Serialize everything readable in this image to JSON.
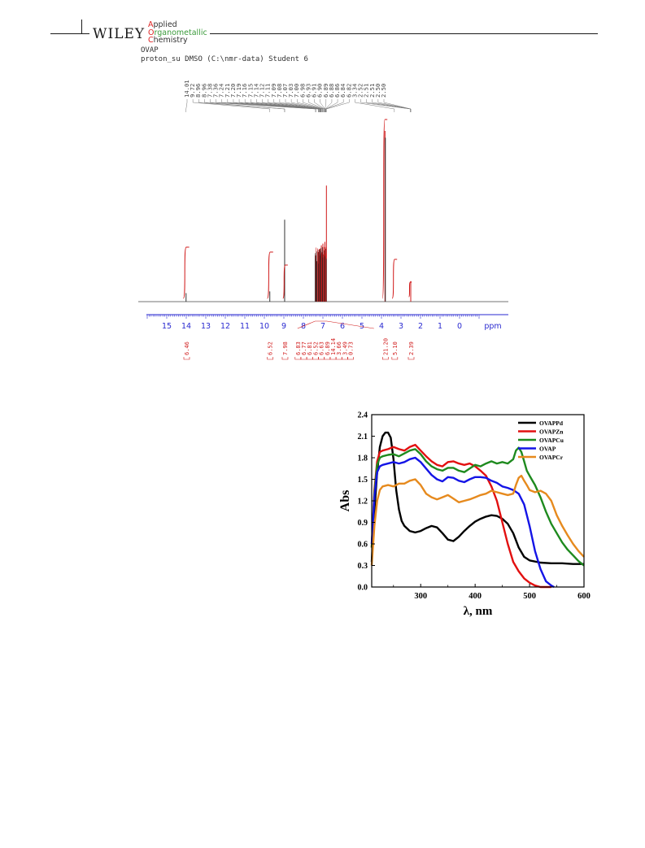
{
  "header": {
    "publisher": "WILEY",
    "journal_line1": "Applied",
    "journal_line2": "Organometallic",
    "journal_line3": "Chemistry"
  },
  "nmr": {
    "sample": "OVAP",
    "experiment": "proton_su DMSO (C:\\nmr-data) Student 6",
    "peak_labels": [
      "14.01",
      "9.72",
      "8.96",
      "8.96",
      "7.38",
      "7.36",
      "7.24",
      "7.21",
      "7.20",
      "7.19",
      "7.16",
      "7.15",
      "7.14",
      "7.12",
      "7.11",
      "7.09",
      "7.08",
      "7.07",
      "7.03",
      "7.00",
      "6.98",
      "6.93",
      "6.91",
      "6.90",
      "6.89",
      "6.88",
      "6.86",
      "6.84",
      "6.82",
      "3.34",
      "2.52",
      "2.51",
      "2.51",
      "2.50",
      "2.50"
    ],
    "ticks": [
      "15",
      "14",
      "13",
      "12",
      "11",
      "10",
      "9",
      "8",
      "7",
      "6",
      "5",
      "4",
      "3",
      "2",
      "1",
      "0"
    ],
    "unit": "ppm",
    "integrals": [
      {
        "ppm": 14.0,
        "label": "6.46"
      },
      {
        "ppm": 9.7,
        "label": "6.52"
      },
      {
        "ppm": 8.95,
        "label": "7.98"
      },
      {
        "ppm": 7.3,
        "label": "6.83"
      },
      {
        "ppm": 7.18,
        "label": "6.77"
      },
      {
        "ppm": 7.08,
        "label": "6.81"
      },
      {
        "ppm": 7.0,
        "label": "6.52"
      },
      {
        "ppm": 6.93,
        "label": "6.63"
      },
      {
        "ppm": 6.88,
        "label": "6.89"
      },
      {
        "ppm": 6.85,
        "label": "14.14"
      },
      {
        "ppm": 6.8,
        "label": "3.66"
      },
      {
        "ppm": 6.76,
        "label": "3.49"
      },
      {
        "ppm": 6.7,
        "label": "0.73"
      },
      {
        "ppm": 3.82,
        "label": "21.20"
      },
      {
        "ppm": 3.34,
        "label": "5.10"
      },
      {
        "ppm": 2.5,
        "label": "2.39"
      }
    ],
    "peaks": [
      {
        "ppm": 14.01,
        "h": 0.05,
        "color": "#333333"
      },
      {
        "ppm": 9.72,
        "h": 0.06,
        "color": "#333333"
      },
      {
        "ppm": 8.96,
        "h": 0.48,
        "color": "#333333"
      },
      {
        "ppm": 7.38,
        "h": 0.27,
        "color": "#d01818"
      },
      {
        "ppm": 7.36,
        "h": 0.27,
        "color": "#333333"
      },
      {
        "ppm": 7.24,
        "h": 0.29,
        "color": "#d01818"
      },
      {
        "ppm": 7.21,
        "h": 0.29,
        "color": "#333333"
      },
      {
        "ppm": 7.19,
        "h": 0.3,
        "color": "#d01818"
      },
      {
        "ppm": 7.16,
        "h": 0.27,
        "color": "#333333"
      },
      {
        "ppm": 7.14,
        "h": 0.31,
        "color": "#d01818"
      },
      {
        "ppm": 7.11,
        "h": 0.28,
        "color": "#333333"
      },
      {
        "ppm": 7.08,
        "h": 0.33,
        "color": "#d01818"
      },
      {
        "ppm": 7.03,
        "h": 0.29,
        "color": "#333333"
      },
      {
        "ppm": 7.0,
        "h": 0.34,
        "color": "#d01818"
      },
      {
        "ppm": 6.93,
        "h": 0.3,
        "color": "#333333"
      },
      {
        "ppm": 6.9,
        "h": 0.35,
        "color": "#d01818"
      },
      {
        "ppm": 6.86,
        "h": 0.31,
        "color": "#333333"
      },
      {
        "ppm": 6.82,
        "h": 0.68,
        "color": "#d01818"
      },
      {
        "ppm": 3.82,
        "h": 1.0,
        "color": "#d01818"
      },
      {
        "ppm": 3.8,
        "h": 0.96,
        "color": "#333333"
      },
      {
        "ppm": 2.5,
        "h": 0.12,
        "color": "#d01818"
      }
    ]
  },
  "uv_chart": {
    "chart_data": {
      "type": "line",
      "xlabel": "λ, nm",
      "ylabel": "Abs",
      "xlim": [
        210,
        600
      ],
      "ylim": [
        0,
        2.4
      ],
      "xticks": [
        "300",
        "400",
        "500",
        "600"
      ],
      "yticks": [
        "0.0",
        "0.3",
        "0.6",
        "0.9",
        "1.2",
        "1.5",
        "1.8",
        "2.1",
        "2.4"
      ],
      "legend_position": "top-right",
      "series": [
        {
          "name": "OVAPPd",
          "color": "#000000",
          "x": [
            210,
            215,
            220,
            225,
            230,
            235,
            240,
            245,
            250,
            255,
            260,
            265,
            270,
            280,
            290,
            300,
            310,
            320,
            330,
            340,
            350,
            360,
            370,
            380,
            390,
            400,
            410,
            420,
            430,
            440,
            450,
            460,
            470,
            480,
            490,
            500,
            520,
            540,
            560,
            580,
            600
          ],
          "y": [
            0.35,
            1.05,
            1.6,
            1.95,
            2.1,
            2.15,
            2.15,
            2.08,
            1.78,
            1.35,
            1.08,
            0.92,
            0.85,
            0.78,
            0.76,
            0.78,
            0.82,
            0.85,
            0.83,
            0.75,
            0.66,
            0.64,
            0.7,
            0.78,
            0.85,
            0.91,
            0.95,
            0.98,
            1.0,
            0.99,
            0.95,
            0.88,
            0.75,
            0.55,
            0.42,
            0.37,
            0.34,
            0.33,
            0.33,
            0.32,
            0.32
          ]
        },
        {
          "name": "OVAPZn",
          "color": "#e21010",
          "x": [
            210,
            215,
            220,
            225,
            230,
            240,
            250,
            260,
            270,
            280,
            290,
            300,
            310,
            320,
            330,
            340,
            350,
            360,
            370,
            380,
            390,
            400,
            410,
            420,
            430,
            440,
            450,
            460,
            470,
            480,
            490,
            500,
            510,
            520,
            530,
            540
          ],
          "y": [
            0.55,
            1.35,
            1.75,
            1.88,
            1.9,
            1.92,
            1.95,
            1.92,
            1.9,
            1.95,
            1.98,
            1.9,
            1.82,
            1.75,
            1.7,
            1.68,
            1.74,
            1.75,
            1.72,
            1.7,
            1.72,
            1.68,
            1.62,
            1.55,
            1.4,
            1.2,
            0.9,
            0.6,
            0.35,
            0.22,
            0.12,
            0.06,
            0.02,
            0.0,
            0.0,
            0.0
          ]
        },
        {
          "name": "OVAPCu",
          "color": "#1e8a1e",
          "x": [
            210,
            215,
            220,
            225,
            230,
            240,
            250,
            260,
            270,
            280,
            290,
            300,
            310,
            320,
            330,
            340,
            350,
            360,
            370,
            380,
            390,
            400,
            410,
            420,
            430,
            440,
            450,
            460,
            470,
            475,
            480,
            485,
            490,
            495,
            500,
            510,
            520,
            530,
            540,
            550,
            560,
            570,
            580,
            590,
            600
          ],
          "y": [
            0.55,
            1.3,
            1.7,
            1.8,
            1.82,
            1.84,
            1.85,
            1.82,
            1.86,
            1.9,
            1.92,
            1.85,
            1.75,
            1.68,
            1.64,
            1.62,
            1.66,
            1.66,
            1.62,
            1.6,
            1.65,
            1.7,
            1.68,
            1.72,
            1.75,
            1.72,
            1.74,
            1.72,
            1.78,
            1.9,
            1.94,
            1.88,
            1.75,
            1.62,
            1.55,
            1.42,
            1.25,
            1.05,
            0.88,
            0.75,
            0.62,
            0.52,
            0.44,
            0.36,
            0.3
          ]
        },
        {
          "name": "OVAP",
          "color": "#1414e6",
          "x": [
            210,
            215,
            220,
            225,
            230,
            240,
            250,
            260,
            270,
            280,
            290,
            300,
            310,
            320,
            330,
            340,
            350,
            360,
            370,
            380,
            390,
            400,
            410,
            420,
            430,
            440,
            450,
            460,
            470,
            480,
            490,
            500,
            510,
            520,
            530,
            540,
            545
          ],
          "y": [
            0.6,
            1.25,
            1.6,
            1.68,
            1.7,
            1.72,
            1.74,
            1.72,
            1.74,
            1.78,
            1.8,
            1.74,
            1.65,
            1.56,
            1.5,
            1.47,
            1.53,
            1.52,
            1.48,
            1.46,
            1.5,
            1.53,
            1.53,
            1.52,
            1.48,
            1.45,
            1.4,
            1.38,
            1.35,
            1.3,
            1.15,
            0.85,
            0.5,
            0.25,
            0.08,
            0.02,
            0.0
          ]
        },
        {
          "name": "OVAPCr",
          "color": "#e68a1e",
          "x": [
            210,
            215,
            220,
            225,
            230,
            240,
            250,
            260,
            270,
            280,
            290,
            300,
            310,
            320,
            330,
            340,
            350,
            360,
            370,
            380,
            390,
            400,
            410,
            420,
            430,
            440,
            450,
            460,
            470,
            475,
            480,
            485,
            490,
            495,
            500,
            510,
            520,
            530,
            540,
            550,
            560,
            570,
            580,
            590,
            600
          ],
          "y": [
            0.3,
            0.85,
            1.2,
            1.35,
            1.4,
            1.42,
            1.4,
            1.44,
            1.44,
            1.48,
            1.5,
            1.42,
            1.3,
            1.25,
            1.22,
            1.25,
            1.28,
            1.23,
            1.18,
            1.2,
            1.22,
            1.25,
            1.28,
            1.3,
            1.34,
            1.32,
            1.3,
            1.28,
            1.3,
            1.42,
            1.52,
            1.55,
            1.48,
            1.42,
            1.35,
            1.32,
            1.34,
            1.3,
            1.2,
            1.0,
            0.85,
            0.72,
            0.6,
            0.5,
            0.42
          ]
        }
      ]
    }
  }
}
